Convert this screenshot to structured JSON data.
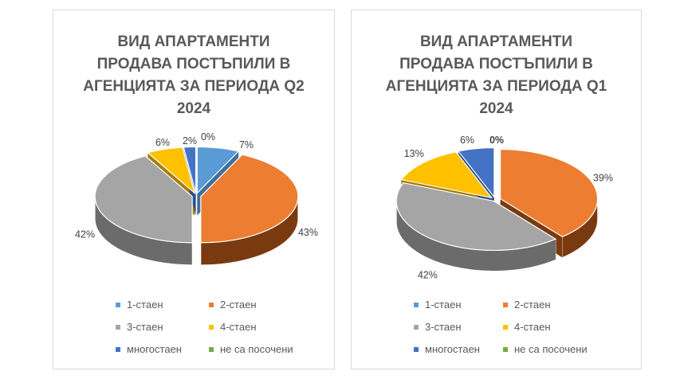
{
  "chart_data": [
    {
      "type": "pie",
      "title_lines": [
        "ВИД АПАРТАМЕНТИ",
        "ПРОДАВА ПОСТЪПИЛИ В",
        "АГЕНЦИЯТА ЗА ПЕРИОДА Q2",
        "2024"
      ],
      "categories": [
        "1-стаен",
        "2-стаен",
        "3-стаен",
        "4-стаен",
        "многостаен",
        "не са посочени"
      ],
      "values": [
        7,
        43,
        42,
        6,
        2,
        0
      ],
      "labels": [
        "7%",
        "43%",
        "42%",
        "6%",
        "2%",
        "0%"
      ],
      "legend": "bottom"
    },
    {
      "type": "pie",
      "title_lines": [
        "ВИД АПАРТАМЕНТИ",
        "ПРОДАВА ПОСТЪПИЛИ В",
        "АГЕНЦИЯТА ЗА ПЕРИОДА Q1",
        "2024"
      ],
      "categories": [
        "1-стаен",
        "2-стаен",
        "3-стаен",
        "4-стаен",
        "многостаен",
        "не са посочени"
      ],
      "values": [
        0,
        39,
        42,
        13,
        6,
        0
      ],
      "labels": [
        "0%",
        "39%",
        "42%",
        "13%",
        "6%",
        "0%"
      ],
      "legend": "bottom"
    }
  ],
  "colors": [
    "#5b9bd5",
    "#ed7d31",
    "#a5a5a5",
    "#ffc000",
    "#4472c4",
    "#70ad47"
  ],
  "side_colors": [
    "#3e6f9e",
    "#7a3a10",
    "#6b6b6b",
    "#a67c00",
    "#2c4d8a",
    "#4a7a2e"
  ]
}
